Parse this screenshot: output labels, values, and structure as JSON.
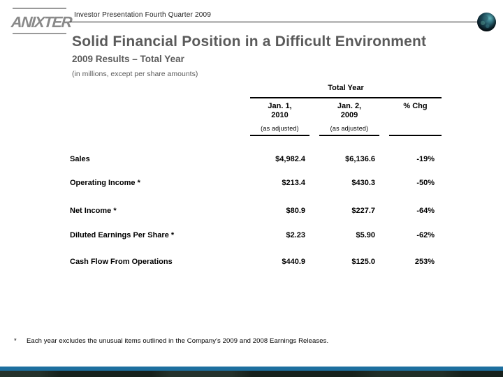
{
  "slide": {
    "logo_text": "ANIXTER",
    "header": "Investor Presentation Fourth Quarter 2009",
    "title": "Solid Financial Position in a Difficult Environment",
    "subtitle": "2009 Results – Total Year",
    "units_note": "(in millions, except per share amounts)",
    "footnote_marker": "*",
    "footnote": "Each year excludes the unusual items outlined in the Company's 2009 and 2008 Earnings Releases."
  },
  "table": {
    "group_header": "Total Year",
    "columns": [
      {
        "label": "Jan. 1,\n2010",
        "sub": "(as adjusted)"
      },
      {
        "label": "Jan. 2,\n2009",
        "sub": "(as adjusted)"
      },
      {
        "label": "% Chg",
        "sub": ""
      }
    ],
    "rows": [
      {
        "label": "Sales",
        "v1": "$4,982.4",
        "v2": "$6,136.6",
        "chg": "-19%"
      },
      {
        "label": "Operating Income *",
        "v1": "$213.4",
        "v2": "$430.3",
        "chg": "-50%"
      },
      {
        "label": "Net Income *",
        "v1": "$80.9",
        "v2": "$227.7",
        "chg": "-64%"
      },
      {
        "label": "Diluted Earnings Per Share *",
        "v1": "$2.23",
        "v2": "$5.90",
        "chg": "-62%"
      },
      {
        "label": "Cash Flow From Operations",
        "v1": "$440.9",
        "v2": "$125.0",
        "chg": "253%"
      }
    ]
  },
  "colors": {
    "title_gray": "#5a5a5a",
    "logo_gray": "#8a8a8a",
    "accent_blue": "#1d6f9f",
    "footer_dark": "#17211c"
  }
}
